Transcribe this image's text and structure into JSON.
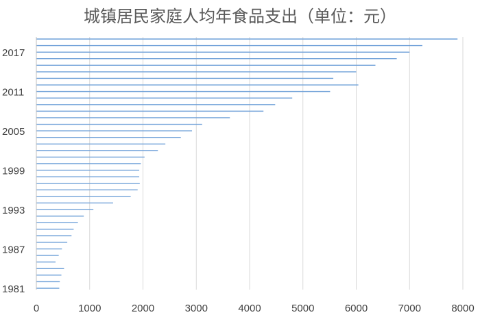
{
  "chart_data": {
    "type": "bar",
    "orientation": "horizontal",
    "title": "城镇居民家庭人均年食品支出（单位：元）",
    "xlabel": "",
    "ylabel": "",
    "xlim": [
      0,
      8000
    ],
    "x_ticks": [
      "0",
      "1000",
      "2000",
      "3000",
      "4000",
      "5000",
      "6000",
      "7000",
      "8000"
    ],
    "y_tick_labels": [
      "1981",
      "1987",
      "1993",
      "1999",
      "2005",
      "2011",
      "2017"
    ],
    "grid": "vertical",
    "legend": "none",
    "bar_color": "#6fa0d8",
    "categories": [
      "1981",
      "1982",
      "1983",
      "1984",
      "1985",
      "1986",
      "1987",
      "1988",
      "1989",
      "1990",
      "1991",
      "1992",
      "1993",
      "1994",
      "1995",
      "1996",
      "1997",
      "1998",
      "1999",
      "2000",
      "2001",
      "2002",
      "2003",
      "2004",
      "2005",
      "2006",
      "2007",
      "2008",
      "2009",
      "2010",
      "2011",
      "2012",
      "2013",
      "2014",
      "2015",
      "2016",
      "2017",
      "2018",
      "2019"
    ],
    "values": [
      430,
      440,
      470,
      520,
      360,
      420,
      480,
      580,
      660,
      700,
      780,
      890,
      1070,
      1440,
      1770,
      1900,
      1940,
      1930,
      1930,
      1960,
      2030,
      2280,
      2420,
      2710,
      2920,
      3110,
      3630,
      4260,
      4480,
      4800,
      5510,
      6040,
      5570,
      6000,
      6360,
      6760,
      7000,
      7240,
      7900
    ]
  }
}
